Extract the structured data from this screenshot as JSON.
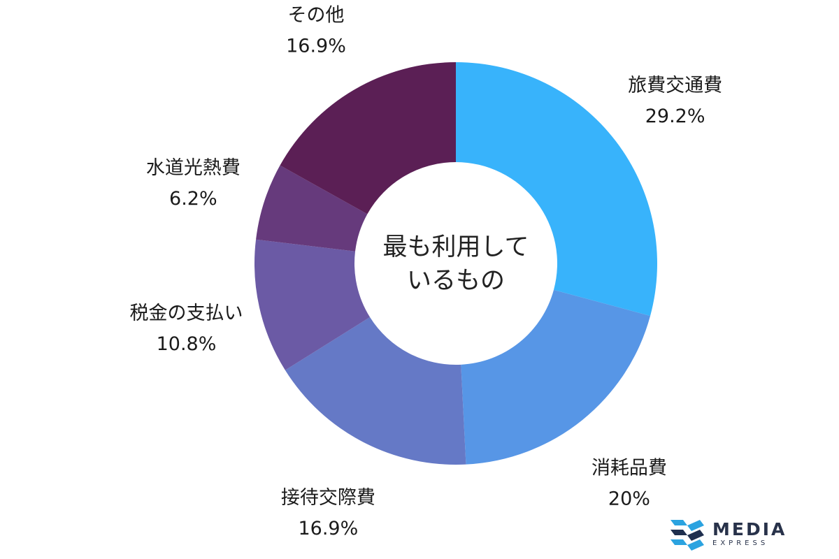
{
  "chart_data": {
    "type": "pie",
    "donut": true,
    "center_label": [
      "最も利用して",
      "いるもの"
    ],
    "series": [
      {
        "label": "旅費交通費",
        "value": 29.2,
        "display": "29.2%",
        "color": "#38b3fb"
      },
      {
        "label": "消耗品費",
        "value": 20,
        "display": "20%",
        "color": "#5796e6"
      },
      {
        "label": "接待交際費",
        "value": 16.9,
        "display": "16.9%",
        "color": "#6579c6"
      },
      {
        "label": "税金の支払い",
        "value": 10.8,
        "display": "10.8%",
        "color": "#6b5aa5"
      },
      {
        "label": "水道光熱費",
        "value": 6.2,
        "display": "6.2%",
        "color": "#663a7c"
      },
      {
        "label": "その他",
        "value": 16.9,
        "display": "16.9%",
        "color": "#5b1f55"
      }
    ]
  },
  "logo": {
    "main": "MEDIA",
    "sub": "EXPRESS",
    "mark_icon": "media-express-logo-icon",
    "mark_colors": [
      "#2ba3e0",
      "#1f2f4e"
    ]
  }
}
